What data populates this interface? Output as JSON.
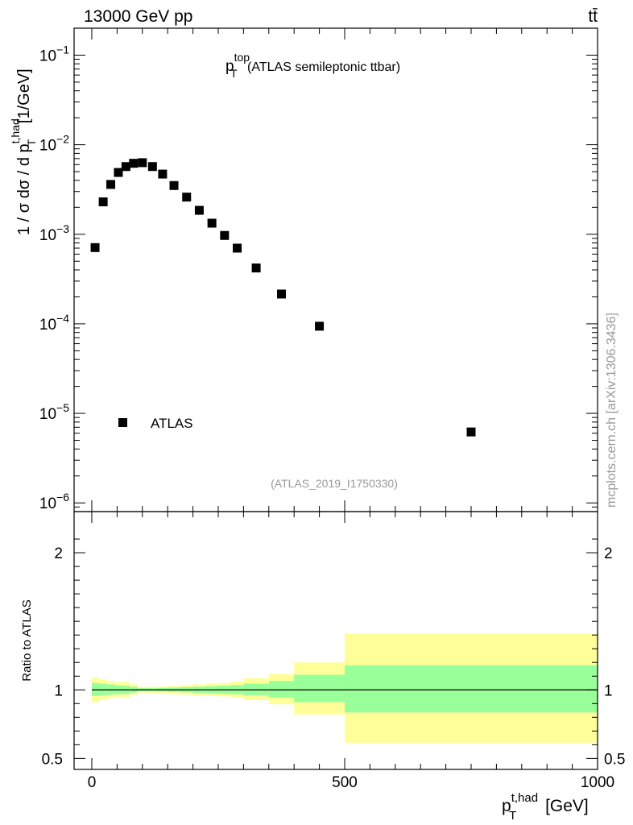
{
  "header": {
    "energy_label": "13000 GeV pp",
    "process_label": "tt̄"
  },
  "side_label": "mcplots.cern.ch [arXiv:1306.3436]",
  "analysis_label": "(ATLAS_2019_I1750330)",
  "colors": {
    "band_outer": "#ffff99",
    "band_inner": "#99ff99",
    "marker": "#000000"
  },
  "chart_data": [
    {
      "type": "scatter",
      "title_main": "p",
      "title_sup": "top",
      "title_sub": "T",
      "title_rest": " (ATLAS semileptonic ttbar)",
      "ylabel_main": "1 / σ dσ / d p",
      "ylabel_sup": "t,had",
      "ylabel_sub": "T",
      "ylabel_unit": " [1/GeV]",
      "yscale": "log",
      "ylim": [
        8e-07,
        0.2
      ],
      "xlim": [
        -35,
        1000
      ],
      "ytick_labels": [
        {
          "base": "10",
          "exp": "−1",
          "value": 0.1
        },
        {
          "base": "10",
          "exp": "−2",
          "value": 0.01
        },
        {
          "base": "10",
          "exp": "−3",
          "value": 0.001
        },
        {
          "base": "10",
          "exp": "−4",
          "value": 0.0001
        },
        {
          "base": "10",
          "exp": "−5",
          "value": 1e-05
        },
        {
          "base": "10",
          "exp": "−6",
          "value": 1e-06
        }
      ],
      "legend": {
        "entry": "ATLAS",
        "position": "lower-left"
      },
      "series": [
        {
          "name": "ATLAS",
          "x": [
            6.5,
            22.5,
            37.5,
            52.5,
            67.5,
            82.5,
            100,
            120,
            140,
            162.5,
            187.5,
            212.5,
            237.5,
            262.5,
            287.5,
            325,
            375,
            450,
            750
          ],
          "y": [
            0.00071,
            0.0023,
            0.0036,
            0.0049,
            0.0057,
            0.0062,
            0.0063,
            0.0057,
            0.0047,
            0.0035,
            0.0026,
            0.00185,
            0.00133,
            0.00097,
            0.0007,
            0.00042,
            0.000215,
            9.4e-05,
            6.2e-06
          ]
        }
      ]
    },
    {
      "type": "area",
      "ylabel": "Ratio to ATLAS",
      "xlabel_main": "p",
      "xlabel_sup": "t,had",
      "xlabel_sub": "T",
      "xlabel_unit": " [GeV]",
      "xlim": [
        -35,
        1000
      ],
      "ylim": [
        0.42,
        2.3
      ],
      "reference_line": 1,
      "ytick_labels": [
        {
          "label": "0.5",
          "value": 0.5
        },
        {
          "label": "1",
          "value": 1
        },
        {
          "label": "2",
          "value": 2
        }
      ],
      "xtick_labels": [
        {
          "label": "0",
          "value": 0
        },
        {
          "label": "500",
          "value": 500
        },
        {
          "label": "1000",
          "value": 1000
        }
      ],
      "bins": [
        {
          "lo": 0,
          "hi": 15,
          "inner": [
            0.955,
            1.05
          ],
          "outer": [
            0.91,
            1.09
          ]
        },
        {
          "lo": 15,
          "hi": 30,
          "inner": [
            0.96,
            1.045
          ],
          "outer": [
            0.93,
            1.075
          ]
        },
        {
          "lo": 30,
          "hi": 45,
          "inner": [
            0.965,
            1.04
          ],
          "outer": [
            0.94,
            1.065
          ]
        },
        {
          "lo": 45,
          "hi": 60,
          "inner": [
            0.968,
            1.033
          ],
          "outer": [
            0.95,
            1.055
          ]
        },
        {
          "lo": 60,
          "hi": 75,
          "inner": [
            0.97,
            1.03
          ],
          "outer": [
            0.94,
            1.06
          ]
        },
        {
          "lo": 75,
          "hi": 90,
          "inner": [
            0.98,
            1.022
          ],
          "outer": [
            0.965,
            1.04
          ]
        },
        {
          "lo": 90,
          "hi": 110,
          "inner": [
            0.99,
            1.012
          ],
          "outer": [
            0.98,
            1.022
          ]
        },
        {
          "lo": 110,
          "hi": 130,
          "inner": [
            0.99,
            1.012
          ],
          "outer": [
            0.978,
            1.022
          ]
        },
        {
          "lo": 130,
          "hi": 150,
          "inner": [
            0.988,
            1.014
          ],
          "outer": [
            0.975,
            1.025
          ]
        },
        {
          "lo": 150,
          "hi": 175,
          "inner": [
            0.985,
            1.017
          ],
          "outer": [
            0.97,
            1.028
          ]
        },
        {
          "lo": 175,
          "hi": 200,
          "inner": [
            0.982,
            1.02
          ],
          "outer": [
            0.965,
            1.035
          ]
        },
        {
          "lo": 200,
          "hi": 225,
          "inner": [
            0.978,
            1.023
          ],
          "outer": [
            0.96,
            1.04
          ]
        },
        {
          "lo": 225,
          "hi": 250,
          "inner": [
            0.975,
            1.027
          ],
          "outer": [
            0.955,
            1.045
          ]
        },
        {
          "lo": 250,
          "hi": 275,
          "inner": [
            0.972,
            1.03
          ],
          "outer": [
            0.952,
            1.05
          ]
        },
        {
          "lo": 275,
          "hi": 300,
          "inner": [
            0.968,
            1.035
          ],
          "outer": [
            0.945,
            1.06
          ]
        },
        {
          "lo": 300,
          "hi": 350,
          "inner": [
            0.96,
            1.045
          ],
          "outer": [
            0.925,
            1.085
          ]
        },
        {
          "lo": 350,
          "hi": 400,
          "inner": [
            0.945,
            1.065
          ],
          "outer": [
            0.895,
            1.115
          ]
        },
        {
          "lo": 400,
          "hi": 500,
          "inner": [
            0.91,
            1.11
          ],
          "outer": [
            0.82,
            1.2
          ]
        },
        {
          "lo": 500,
          "hi": 1000,
          "inner": [
            0.835,
            1.18
          ],
          "outer": [
            0.615,
            1.41
          ]
        }
      ]
    }
  ]
}
